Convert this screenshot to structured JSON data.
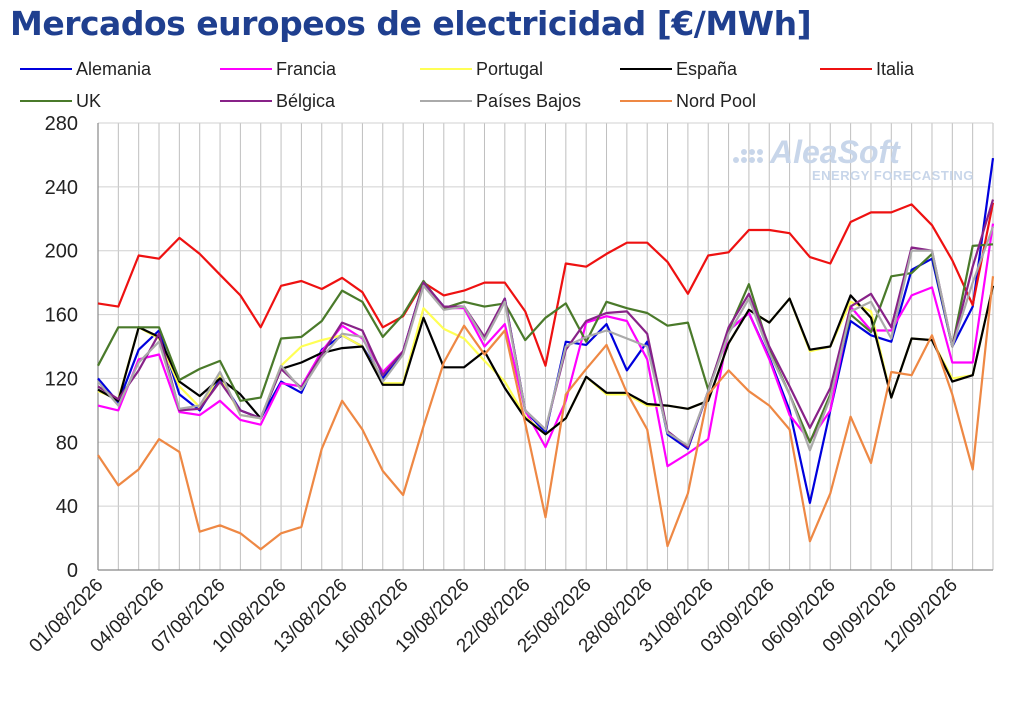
{
  "title": "Mercados europeos de electricidad [€/MWh]",
  "watermark": {
    "brand": "AleaSoft",
    "tagline": "ENERGY FORECASTING"
  },
  "chart_data": {
    "type": "line",
    "title": "Mercados europeos de electricidad [€/MWh]",
    "ylim": [
      0,
      280
    ],
    "yticks": [
      0,
      40,
      80,
      120,
      160,
      200,
      240,
      280
    ],
    "grid": true,
    "legend_placement": "top",
    "x": [
      "01/08/2026",
      "02/08/2026",
      "03/08/2026",
      "04/08/2026",
      "05/08/2026",
      "06/08/2026",
      "07/08/2026",
      "08/08/2026",
      "09/08/2026",
      "10/08/2026",
      "11/08/2026",
      "12/08/2026",
      "13/08/2026",
      "14/08/2026",
      "15/08/2026",
      "16/08/2026",
      "17/08/2026",
      "18/08/2026",
      "19/08/2026",
      "20/08/2026",
      "21/08/2026",
      "22/08/2026",
      "23/08/2026",
      "24/08/2026",
      "25/08/2026",
      "26/08/2026",
      "27/08/2026",
      "28/08/2026",
      "29/08/2026",
      "30/08/2026",
      "31/08/2026",
      "01/09/2026",
      "02/09/2026",
      "03/09/2026",
      "04/09/2026",
      "05/09/2026",
      "06/09/2026",
      "07/09/2026",
      "08/09/2026",
      "09/09/2026",
      "10/09/2026",
      "11/09/2026",
      "12/09/2026",
      "13/09/2026",
      "14/09/2026"
    ],
    "xtick_labels": [
      "01/08/2026",
      "04/08/2026",
      "07/08/2026",
      "10/08/2026",
      "13/08/2026",
      "16/08/2026",
      "19/08/2026",
      "22/08/2026",
      "25/08/2026",
      "28/08/2026",
      "31/08/2026",
      "03/09/2026",
      "06/09/2026",
      "09/09/2026",
      "12/09/2026"
    ],
    "series": [
      {
        "name": "Alemania",
        "color": "#0000dd",
        "values": [
          120,
          105,
          138,
          150,
          110,
          100,
          120,
          100,
          95,
          118,
          111,
          138,
          147,
          140,
          120,
          137,
          180,
          165,
          165,
          145,
          170,
          100,
          86,
          143,
          141,
          154,
          125,
          143,
          85,
          76,
          112,
          150,
          161,
          133,
          100,
          42,
          100,
          156,
          147,
          143,
          188,
          195,
          140,
          165,
          258
        ]
      },
      {
        "name": "Francia",
        "color": "#ff00ff",
        "values": [
          103,
          100,
          132,
          135,
          99,
          97,
          106,
          94,
          91,
          117,
          115,
          137,
          153,
          145,
          124,
          137,
          179,
          164,
          164,
          140,
          154,
          100,
          77,
          106,
          155,
          159,
          156,
          132,
          65,
          73,
          82,
          150,
          161,
          132,
          97,
          81,
          100,
          165,
          150,
          150,
          172,
          177,
          130,
          130,
          217
        ]
      },
      {
        "name": "Portugal",
        "color": "#ffff55",
        "values": [
          112,
          107,
          152,
          145,
          115,
          102,
          122,
          97,
          95,
          128,
          140,
          144,
          147,
          140,
          117,
          117,
          164,
          151,
          145,
          131,
          118,
          96,
          85,
          95,
          121,
          110,
          110,
          103,
          103,
          101,
          106,
          142,
          163,
          155,
          170,
          137,
          140,
          168,
          162,
          108,
          145,
          144,
          120,
          122,
          178
        ]
      },
      {
        "name": "España",
        "color": "#000000",
        "values": [
          113,
          106,
          152,
          146,
          118,
          109,
          120,
          110,
          95,
          126,
          130,
          136,
          139,
          140,
          116,
          116,
          158,
          127,
          127,
          137,
          114,
          95,
          85,
          95,
          121,
          111,
          111,
          104,
          103,
          101,
          106,
          142,
          163,
          155,
          170,
          138,
          140,
          172,
          158,
          108,
          145,
          144,
          118,
          122,
          178
        ]
      },
      {
        "name": "Italia",
        "color": "#ee1111",
        "values": [
          167,
          165,
          197,
          195,
          208,
          198,
          185,
          172,
          152,
          178,
          181,
          176,
          183,
          174,
          152,
          159,
          180,
          172,
          175,
          180,
          180,
          162,
          128,
          192,
          190,
          198,
          205,
          205,
          193,
          173,
          197,
          199,
          213,
          213,
          211,
          196,
          192,
          218,
          224,
          224,
          229,
          216,
          194,
          166,
          230
        ]
      },
      {
        "name": "UK",
        "color": "#4a7a2a",
        "values": [
          128,
          152,
          152,
          152,
          119,
          126,
          131,
          106,
          108,
          145,
          146,
          156,
          175,
          168,
          146,
          160,
          181,
          164,
          168,
          165,
          167,
          144,
          158,
          167,
          143,
          168,
          164,
          161,
          153,
          155,
          113,
          150,
          179,
          138,
          110,
          80,
          110,
          160,
          149,
          184,
          186,
          198,
          140,
          203,
          204
        ]
      },
      {
        "name": "Bélgica",
        "color": "#882288",
        "values": [
          115,
          107,
          125,
          148,
          100,
          101,
          118,
          100,
          95,
          126,
          114,
          135,
          155,
          150,
          122,
          137,
          180,
          165,
          165,
          146,
          170,
          100,
          88,
          138,
          156,
          161,
          162,
          148,
          87,
          77,
          112,
          152,
          173,
          140,
          115,
          89,
          114,
          165,
          173,
          152,
          202,
          200,
          140,
          190,
          232
        ]
      },
      {
        "name": "Países Bajos",
        "color": "#aaaaaa",
        "values": [
          118,
          103,
          130,
          143,
          101,
          103,
          124,
          97,
          95,
          128,
          113,
          133,
          148,
          146,
          118,
          135,
          178,
          163,
          165,
          144,
          168,
          100,
          88,
          140,
          146,
          150,
          145,
          140,
          86,
          78,
          112,
          148,
          170,
          136,
          110,
          75,
          108,
          162,
          168,
          145,
          200,
          200,
          140,
          180,
          215
        ]
      },
      {
        "name": "Nord Pool",
        "color": "#ee8844",
        "values": [
          72,
          53,
          63,
          82,
          74,
          24,
          28,
          23,
          13,
          23,
          27,
          76,
          106,
          88,
          62,
          47,
          90,
          130,
          153,
          135,
          150,
          92,
          33,
          110,
          126,
          141,
          111,
          88,
          15,
          48,
          110,
          125,
          112,
          103,
          88,
          18,
          48,
          96,
          67,
          124,
          122,
          147,
          110,
          63,
          184
        ]
      }
    ]
  }
}
